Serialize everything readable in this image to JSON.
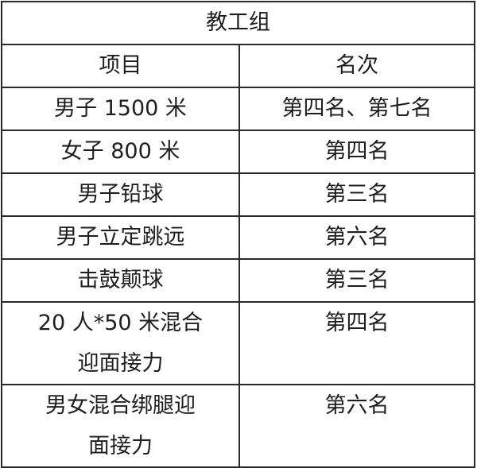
{
  "title": "教工组",
  "headers": {
    "event": "项目",
    "rank": "名次"
  },
  "rows": [
    {
      "event": "男子 1500 米",
      "rank": "第四名、第七名"
    },
    {
      "event": "女子 800 米",
      "rank": "第四名"
    },
    {
      "event": "男子铅球",
      "rank": "第三名"
    },
    {
      "event": "男子立定跳远",
      "rank": "第六名"
    },
    {
      "event": "击鼓颠球",
      "rank": "第三名"
    },
    {
      "event_line1": "20 人*50 米混合",
      "event_line2": "迎面接力",
      "rank": "第四名"
    },
    {
      "event_line1": "男女混合绑腿迎",
      "event_line2": "面接力",
      "rank": "第六名"
    }
  ]
}
